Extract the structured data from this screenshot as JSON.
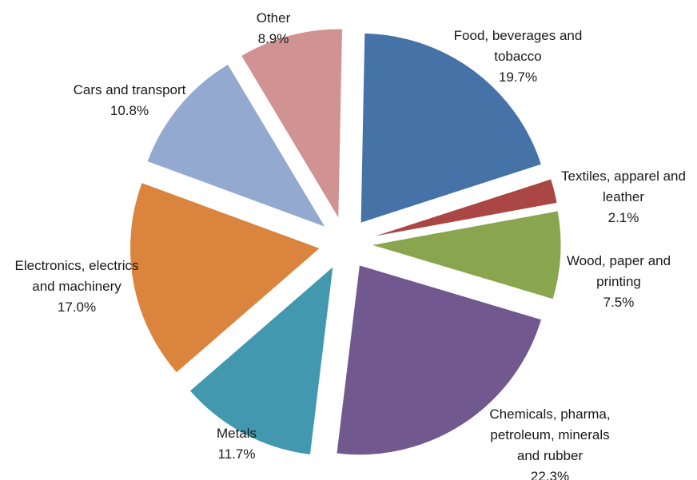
{
  "chart_data": {
    "type": "pie",
    "exploded": true,
    "title": "",
    "slices": [
      {
        "name": "food",
        "label_lines": [
          "Food, beverages and",
          "tobacco"
        ],
        "value_label": "19.7%",
        "value": 19.7,
        "color": "#4572A7"
      },
      {
        "name": "textiles",
        "label_lines": [
          "Textiles, apparel and",
          "leather"
        ],
        "value_label": "2.1%",
        "value": 2.1,
        "color": "#AA4643"
      },
      {
        "name": "wood",
        "label_lines": [
          "Wood, paper and",
          "printing"
        ],
        "value_label": "7.5%",
        "value": 7.5,
        "color": "#89A54E"
      },
      {
        "name": "chemicals",
        "label_lines": [
          "Chemicals, pharma,",
          "petroleum, minerals",
          "and rubber"
        ],
        "value_label": "22.3%",
        "value": 22.3,
        "color": "#71588F"
      },
      {
        "name": "metals",
        "label_lines": [
          "Metals"
        ],
        "value_label": "11.7%",
        "value": 11.7,
        "color": "#4198AF"
      },
      {
        "name": "electronics",
        "label_lines": [
          "Electronics, electrics",
          "and machinery"
        ],
        "value_label": "17.0%",
        "value": 17.0,
        "color": "#DB843D"
      },
      {
        "name": "cars",
        "label_lines": [
          "Cars and transport"
        ],
        "value_label": "10.8%",
        "value": 10.8,
        "color": "#93A9CF"
      },
      {
        "name": "other",
        "label_lines": [
          "Other"
        ],
        "value_label": "8.9%",
        "value": 8.9,
        "color": "#D09392"
      }
    ]
  }
}
